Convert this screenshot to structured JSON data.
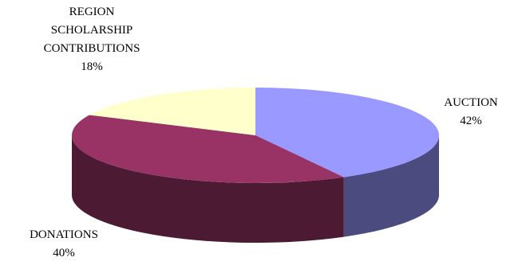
{
  "chart_data": {
    "type": "pie",
    "style": "3d",
    "slices": [
      {
        "name": "AUCTION",
        "label_lines": [
          "AUCTION"
        ],
        "percent_label": "42%",
        "value": 42,
        "top_color": "#9999ff",
        "side_color": "#4b4b80"
      },
      {
        "name": "DONATIONS",
        "label_lines": [
          "DONATIONS"
        ],
        "percent_label": "40%",
        "value": 40,
        "top_color": "#993366",
        "side_color": "#4c1a33"
      },
      {
        "name": "REGION SCHOLARSHIP CONTRIBUTIONS",
        "label_lines": [
          "REGION",
          "SCHOLARSHIP",
          "CONTRIBUTIONS"
        ],
        "percent_label": "18%",
        "value": 18,
        "top_color": "#ffffcc",
        "side_color": "#80806a"
      }
    ],
    "legend": "none"
  }
}
